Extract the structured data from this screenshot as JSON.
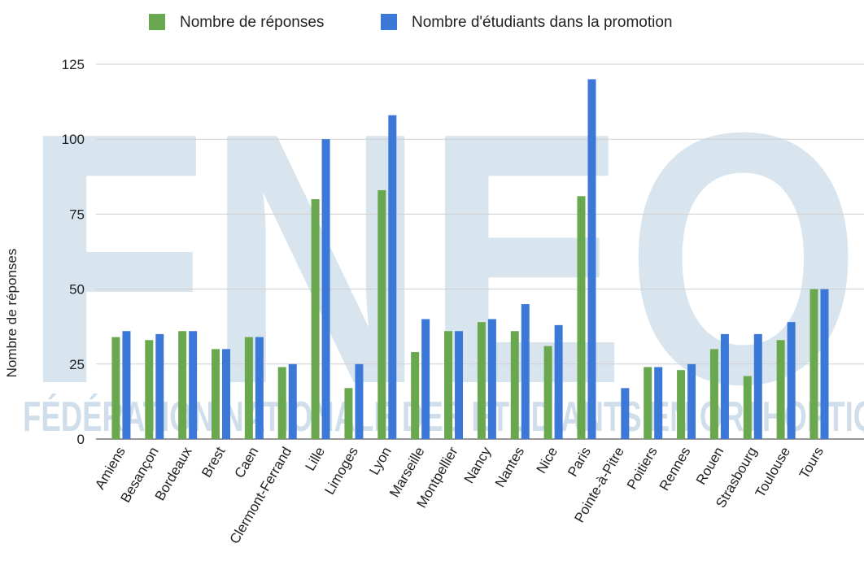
{
  "chart_data": {
    "type": "bar",
    "watermark_logo": "FNEO",
    "watermark_text": "FÉDÉRATION NATIONALE DES ÉTUDIANTS EN ORTHOPTIQUE",
    "y_label": "Nombre de réponses",
    "categories": [
      "Amiens",
      "Besançon",
      "Bordeaux",
      "Brest",
      "Caen",
      "Clermont-Ferrand",
      "Lille",
      "Limoges",
      "Lyon",
      "Marseille",
      "Montpellier",
      "Nancy",
      "Nantes",
      "Nice",
      "Paris",
      "Pointe-à-Pitre",
      "Poitiers",
      "Rennes",
      "Rouen",
      "Strasbourg",
      "Toulouse",
      "Tours"
    ],
    "series": [
      {
        "name": "Nombre de réponses",
        "color": "#6aa84f",
        "values": [
          34,
          33,
          36,
          30,
          34,
          24,
          80,
          17,
          83,
          29,
          36,
          39,
          36,
          31,
          81,
          null,
          24,
          23,
          30,
          21,
          33,
          50
        ]
      },
      {
        "name": "Nombre d'étudiants dans la promotion",
        "color": "#3c78d8",
        "values": [
          36,
          35,
          36,
          30,
          34,
          25,
          100,
          25,
          108,
          40,
          36,
          40,
          45,
          38,
          120,
          17,
          24,
          25,
          35,
          35,
          39,
          50
        ]
      }
    ],
    "ylim": [
      0,
      125
    ],
    "yticks": [
      0,
      25,
      50,
      75,
      100,
      125
    ],
    "grid": true,
    "legend": "top"
  }
}
